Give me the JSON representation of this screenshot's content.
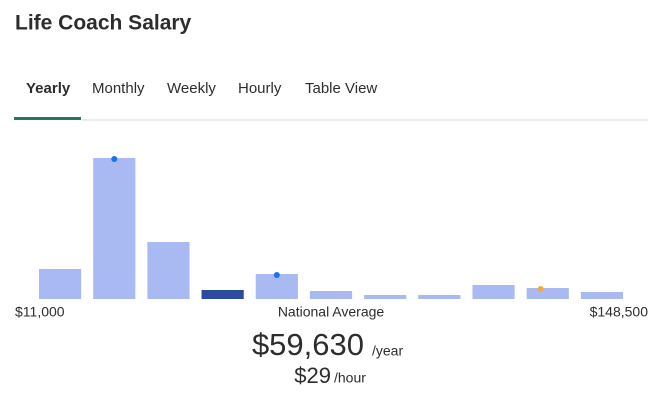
{
  "title": "Life Coach Salary",
  "tabs": [
    "Yearly",
    "Monthly",
    "Weekly",
    "Hourly",
    "Table View"
  ],
  "salary": {
    "label": "National Average",
    "yearly": "$59,630",
    "yearly_unit": "/year",
    "hourly": "$29",
    "hourly_unit": "/hour"
  },
  "chart_data": {
    "type": "histogram",
    "bins": [
      11000,
      23500,
      36000,
      48500,
      61000,
      73500,
      86000,
      98500,
      111000,
      123500,
      136000,
      148500
    ],
    "values": [
      30,
      141,
      57,
      9,
      25,
      8,
      4,
      4,
      14,
      11,
      7
    ],
    "colors": [
      "#a9baf2",
      "#a9baf2",
      "#a9baf2",
      "#2b4aa0",
      "#a9baf2",
      "#a9baf2",
      "#a9baf2",
      "#a9baf2",
      "#a9baf2",
      "#a9baf2",
      "#a9baf2"
    ],
    "dots": [
      null,
      "#1a73e8",
      null,
      null,
      "#1a73e8",
      null,
      null,
      null,
      null,
      "#f5a742",
      null
    ],
    "xticks": [
      {
        "value": 11000,
        "label": "$11,000"
      },
      {
        "value": 148500,
        "label": "$148,500"
      }
    ]
  }
}
